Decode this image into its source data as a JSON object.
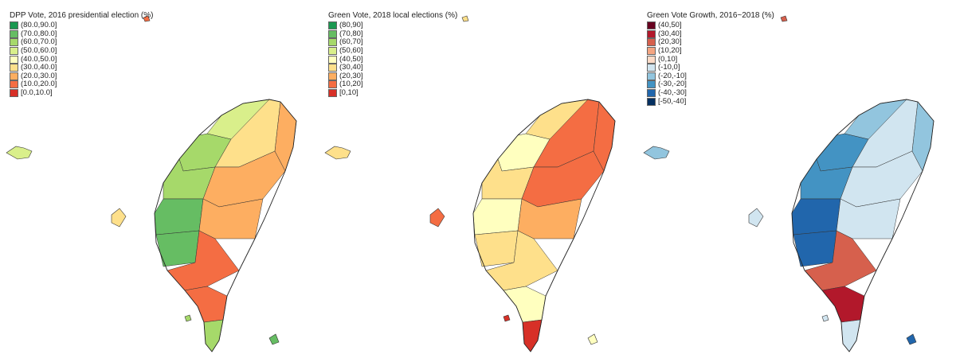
{
  "maps": [
    {
      "title": "DPP Vote, 2016 presidential election (%)",
      "legend": [
        {
          "label": "(80.0,90.0]",
          "color": "#1a9850"
        },
        {
          "label": "(70.0,80.0]",
          "color": "#66bd63"
        },
        {
          "label": "(60.0,70.0]",
          "color": "#a6d96a"
        },
        {
          "label": "(50.0,60.0]",
          "color": "#d9ef8b"
        },
        {
          "label": "(40.0,50.0]",
          "color": "#ffffbf"
        },
        {
          "label": "(30.0,40.0]",
          "color": "#fee08b"
        },
        {
          "label": "(20.0,30.0]",
          "color": "#fdae61"
        },
        {
          "label": "(10.0,20.0]",
          "color": "#f46d43"
        },
        {
          "label": "[0.0,10.0]",
          "color": "#d73027"
        }
      ],
      "zones": [
        "#d9ef8b",
        "#a6d96a",
        "#a6d96a",
        "#66bd63",
        "#66bd63",
        "#fee08b",
        "#fdae61",
        "#fdae61",
        "#f46d43",
        "#f46d43",
        "#a6d96a",
        "#fdae61"
      ]
    },
    {
      "title": "Green Vote, 2018 local elections (%)",
      "legend": [
        {
          "label": "(80,90]",
          "color": "#1a9850"
        },
        {
          "label": "(70,80]",
          "color": "#66bd63"
        },
        {
          "label": "(60,70]",
          "color": "#a6d96a"
        },
        {
          "label": "(50,60]",
          "color": "#d9ef8b"
        },
        {
          "label": "(40,50]",
          "color": "#ffffbf"
        },
        {
          "label": "(30,40]",
          "color": "#fee08b"
        },
        {
          "label": "(20,30]",
          "color": "#fdae61"
        },
        {
          "label": "(10,20]",
          "color": "#f46d43"
        },
        {
          "label": "[0,10]",
          "color": "#d73027"
        }
      ],
      "zones": [
        "#fee08b",
        "#ffffbf",
        "#fee08b",
        "#ffffbf",
        "#fee08b",
        "#f46d43",
        "#f46d43",
        "#fdae61",
        "#fee08b",
        "#ffffbf",
        "#d73027",
        "#f46d43"
      ]
    },
    {
      "title": "Green Vote Growth, 2016~2018 (%)",
      "legend": [
        {
          "label": "(40,50]",
          "color": "#67001f"
        },
        {
          "label": "(30,40]",
          "color": "#b2182b"
        },
        {
          "label": "(20,30]",
          "color": "#d6604d"
        },
        {
          "label": "(10,20]",
          "color": "#f4a582"
        },
        {
          "label": "(0,10]",
          "color": "#fddbc7"
        },
        {
          "label": "(-10,0]",
          "color": "#d1e5f0"
        },
        {
          "label": "(-20,-10]",
          "color": "#92c5de"
        },
        {
          "label": "(-30,-20]",
          "color": "#4393c3"
        },
        {
          "label": "(-40,-30]",
          "color": "#2166ac"
        },
        {
          "label": "[-50,-40]",
          "color": "#053061"
        }
      ],
      "zones": [
        "#92c5de",
        "#4393c3",
        "#4393c3",
        "#2166ac",
        "#2166ac",
        "#d1e5f0",
        "#d1e5f0",
        "#d1e5f0",
        "#d6604d",
        "#b2182b",
        "#d1e5f0",
        "#92c5de"
      ]
    }
  ]
}
